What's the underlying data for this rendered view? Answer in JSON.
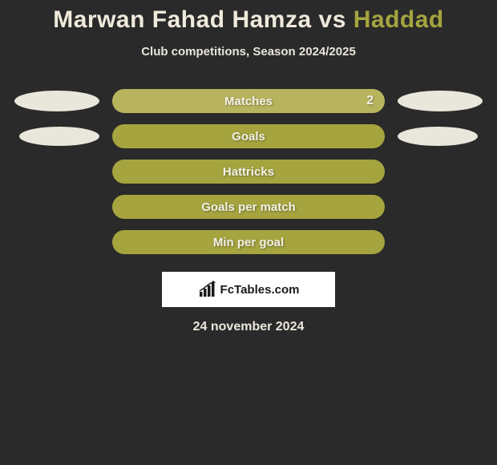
{
  "title": {
    "left": "Marwan Fahad Hamza",
    "vs": "vs",
    "right": "Haddad"
  },
  "subtitle": "Club competitions, Season 2024/2025",
  "colors": {
    "bar_fill": "#a5a43f",
    "bar_first_fill": "#b6b461",
    "ellipse_left": "#e9e6dc",
    "ellipse_right": "#e9e6dc",
    "title_left": "#efeadb",
    "title_right": "#a5a43f"
  },
  "stats": [
    {
      "label": "Matches",
      "value_right": "2",
      "show_left_ellipse": true,
      "show_right_ellipse": true,
      "ellipse_size": "large",
      "bar_color": "#b8b45e"
    },
    {
      "label": "Goals",
      "value_right": "",
      "show_left_ellipse": true,
      "show_right_ellipse": true,
      "ellipse_size": "small",
      "bar_color": "#a5a43f"
    },
    {
      "label": "Hattricks",
      "value_right": "",
      "show_left_ellipse": false,
      "show_right_ellipse": false,
      "ellipse_size": "large",
      "bar_color": "#a5a43f"
    },
    {
      "label": "Goals per match",
      "value_right": "",
      "show_left_ellipse": false,
      "show_right_ellipse": false,
      "ellipse_size": "large",
      "bar_color": "#a5a43f"
    },
    {
      "label": "Min per goal",
      "value_right": "",
      "show_left_ellipse": false,
      "show_right_ellipse": false,
      "ellipse_size": "large",
      "bar_color": "#a5a43f"
    }
  ],
  "badge": {
    "text": "FcTables.com"
  },
  "date": "24 november 2024"
}
